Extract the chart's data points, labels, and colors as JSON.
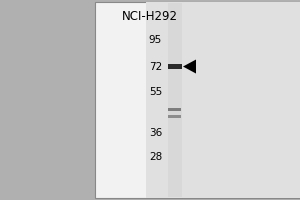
{
  "title": "NCI-H292",
  "mw_markers": [
    95,
    72,
    55,
    36,
    28
  ],
  "band_main_mw": 72,
  "band_faint1_mw": 46,
  "band_faint2_mw": 43,
  "outer_bg": "#b0b0b0",
  "inner_bg": "#f0f0f0",
  "right_bg": "#d8d8d8",
  "lane_color": "#e8e8e8",
  "title_fontsize": 8.5,
  "marker_fontsize": 7.5,
  "fig_width": 3.0,
  "fig_height": 2.0,
  "dpi": 100
}
